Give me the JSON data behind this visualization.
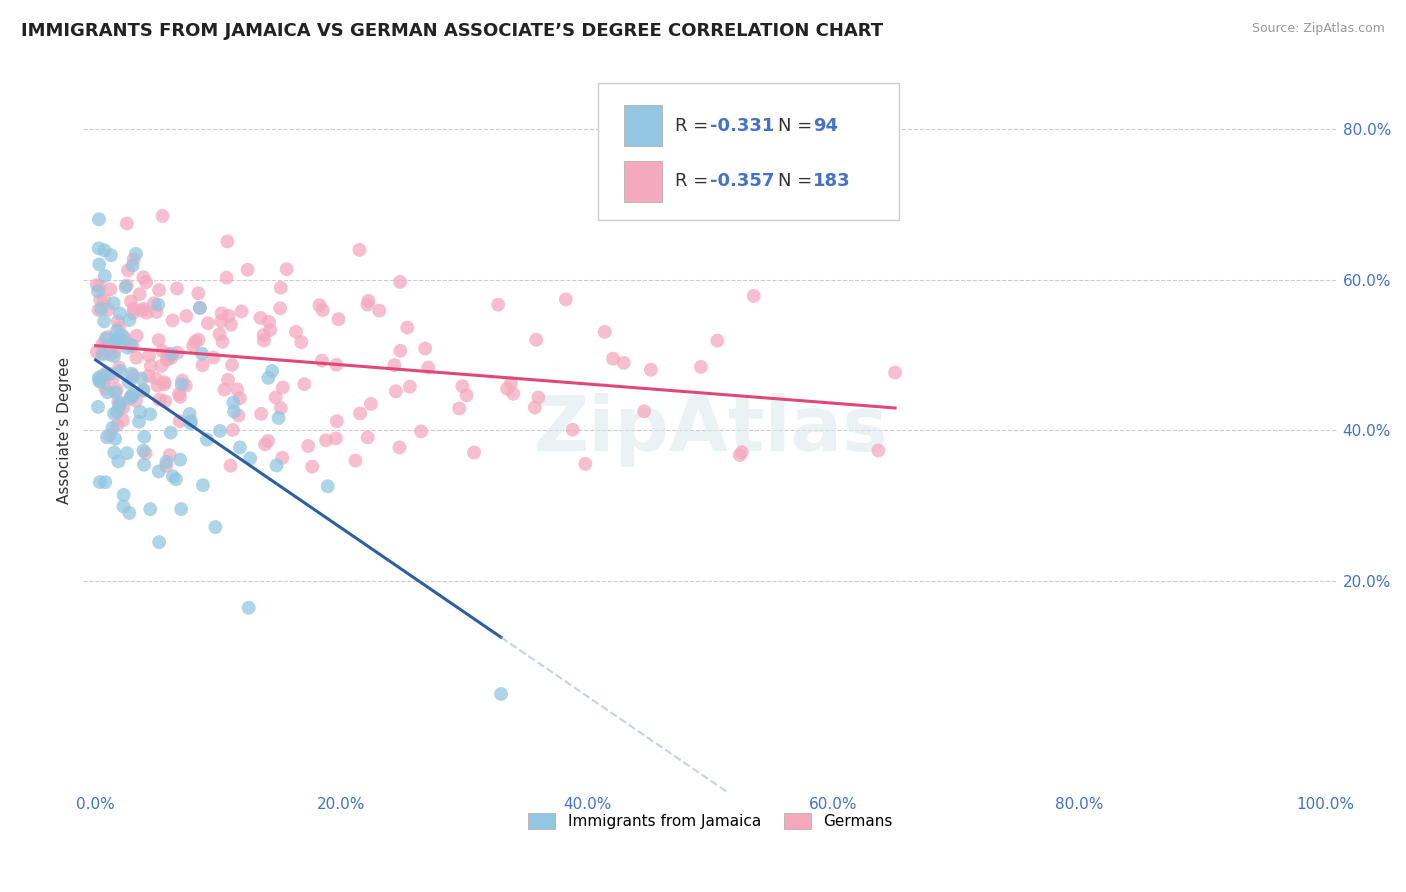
{
  "title": "IMMIGRANTS FROM JAMAICA VS GERMAN ASSOCIATE’S DEGREE CORRELATION CHART",
  "source_text": "Source: ZipAtlas.com",
  "ylabel": "Associate’s Degree",
  "xlim": [
    -1.0,
    101.0
  ],
  "ylim": [
    -8.0,
    88.0
  ],
  "xtick_values": [
    0,
    20,
    40,
    60,
    80,
    100
  ],
  "xtick_labels": [
    "0.0%",
    "20.0%",
    "40.0%",
    "60.0%",
    "80.0%",
    "100.0%"
  ],
  "ytick_values": [
    20,
    40,
    60,
    80
  ],
  "ytick_labels": [
    "20.0%",
    "40.0%",
    "60.0%",
    "80.0%"
  ],
  "blue_color": "#93C6E0",
  "pink_color": "#F4A9BE",
  "blue_line_color": "#2E5FA3",
  "pink_line_color": "#E04878",
  "blue_dash_color": "#9DB8D8",
  "background_color": "#ffffff",
  "grid_color": "#cccccc",
  "tick_color": "#4472C4",
  "title_color": "#222222",
  "source_color": "#999999",
  "ylabel_color": "#333333",
  "watermark_color": "#dce8f0",
  "title_fontsize": 13,
  "source_fontsize": 9,
  "tick_fontsize": 11,
  "ylabel_fontsize": 11,
  "legend_fontsize": 13,
  "watermark_fontsize": 55,
  "legend_R1": "R = ",
  "legend_V1": "-0.331",
  "legend_N1_label": "N = ",
  "legend_N1": "94",
  "legend_R2": "R = ",
  "legend_V2": "-0.357",
  "legend_N2_label": "N = ",
  "legend_N2": "183",
  "series1_name": "Immigrants from Jamaica",
  "series2_name": "Germans",
  "seed1": 77,
  "seed2": 42,
  "n1": 94,
  "n2": 183
}
